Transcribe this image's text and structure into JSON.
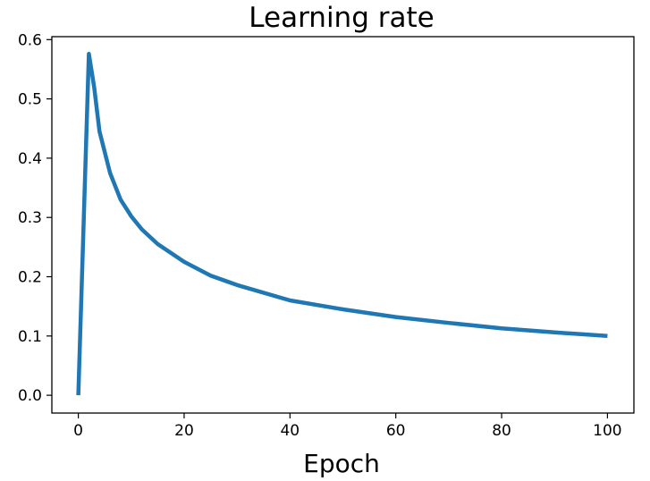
{
  "chart_data": {
    "type": "line",
    "title": "Learning rate",
    "xlabel": "Epoch",
    "ylabel": "",
    "xlim": [
      -5,
      105
    ],
    "ylim": [
      -0.03,
      0.605
    ],
    "xticks": [
      0,
      20,
      40,
      60,
      80,
      100
    ],
    "xtick_labels": [
      "0",
      "20",
      "40",
      "60",
      "80",
      "100"
    ],
    "yticks": [
      0.0,
      0.1,
      0.2,
      0.3,
      0.4,
      0.5,
      0.6
    ],
    "ytick_labels": [
      "0.0",
      "0.1",
      "0.2",
      "0.3",
      "0.4",
      "0.5",
      "0.6"
    ],
    "grid": false,
    "series": [
      {
        "color": "#1f77b4",
        "x": [
          0,
          2,
          3,
          4,
          6,
          8,
          10,
          12,
          15,
          20,
          25,
          30,
          40,
          50,
          60,
          70,
          80,
          90,
          100
        ],
        "y": [
          0.0,
          0.576,
          0.52,
          0.445,
          0.375,
          0.33,
          0.302,
          0.28,
          0.255,
          0.225,
          0.202,
          0.186,
          0.16,
          0.145,
          0.132,
          0.122,
          0.113,
          0.106,
          0.1
        ]
      }
    ]
  }
}
